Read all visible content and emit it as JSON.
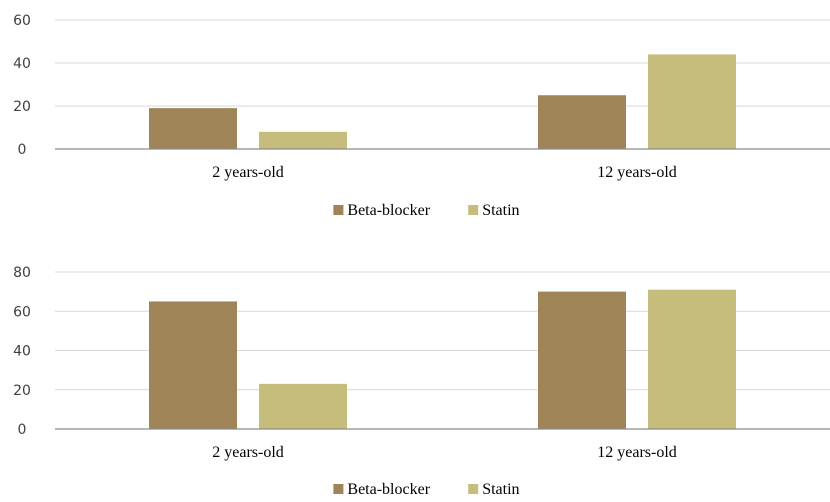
{
  "chart_data": [
    {
      "type": "bar",
      "categories": [
        "2 years-old",
        "12 years-old"
      ],
      "series": [
        {
          "name": "Beta-blocker",
          "values": [
            19,
            25
          ]
        },
        {
          "name": "Statin",
          "values": [
            8,
            44
          ]
        }
      ],
      "ylim": [
        0,
        60
      ],
      "yticks": [
        0,
        20,
        40,
        60
      ],
      "grid": true,
      "legend": "bottom-center"
    },
    {
      "type": "bar",
      "categories": [
        "2 years-old",
        "12 years-old"
      ],
      "series": [
        {
          "name": "Beta-blocker",
          "values": [
            65,
            70
          ]
        },
        {
          "name": "Statin",
          "values": [
            23,
            71
          ]
        }
      ],
      "ylim": [
        0,
        80
      ],
      "yticks": [
        0,
        20,
        40,
        60,
        80
      ],
      "grid": true,
      "legend": "bottom-center"
    }
  ],
  "colors": {
    "Beta-blocker": "#9e8457",
    "Statin": "#c6bd7d"
  }
}
